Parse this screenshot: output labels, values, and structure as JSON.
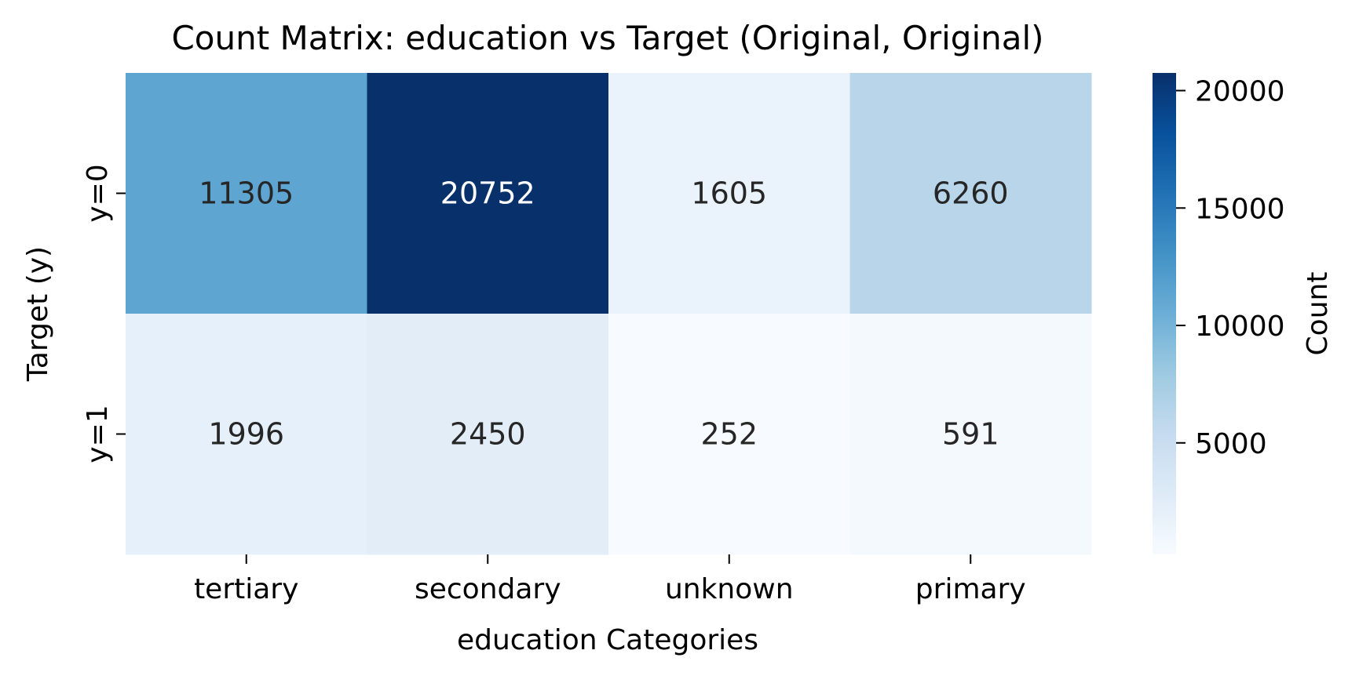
{
  "chart_data": {
    "type": "heatmap",
    "title": "Count Matrix: education vs Target (Original, Original)",
    "xlabel": "education Categories",
    "ylabel": "Target (y)",
    "x_categories": [
      "tertiary",
      "secondary",
      "unknown",
      "primary"
    ],
    "y_categories": [
      "y=0",
      "y=1"
    ],
    "values": [
      [
        11305,
        20752,
        1605,
        6260
      ],
      [
        1996,
        2450,
        252,
        591
      ]
    ],
    "colorbar": {
      "label": "Count",
      "min": 252,
      "max": 20752,
      "ticks": [
        5000,
        10000,
        15000,
        20000
      ],
      "tick_labels": [
        "5000",
        "10000",
        "15000",
        "20000"
      ]
    },
    "colormap": "Blues",
    "colors": {
      "text_dark": "#262626",
      "text_light": "#ffffff",
      "axis": "#000000"
    }
  }
}
